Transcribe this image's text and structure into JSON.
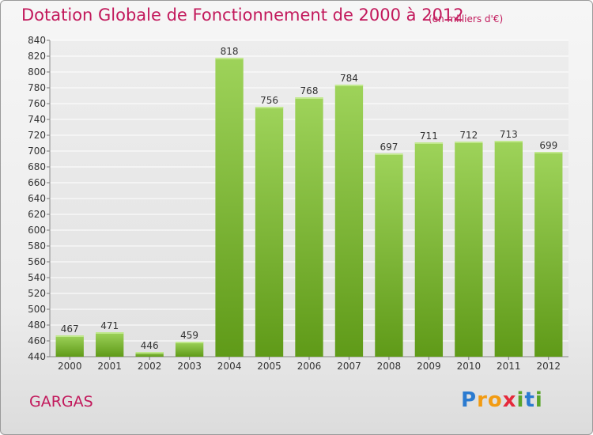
{
  "title": "Dotation Globale de Fonctionnement de 2000 à 2012",
  "subtitle": "(en milliers d'€)",
  "commune": "GARGAS",
  "brand": "Proxiti",
  "colors": {
    "title": "#c2185b",
    "bar_top": "#9ed35a",
    "bar_bottom": "#5f9a18",
    "grid": "#ffffff",
    "text": "#333333"
  },
  "chart_data": {
    "type": "bar",
    "title": "Dotation Globale de Fonctionnement de 2000 à 2012",
    "subtitle": "(en milliers d'€)",
    "categories": [
      "2000",
      "2001",
      "2002",
      "2003",
      "2004",
      "2005",
      "2006",
      "2007",
      "2008",
      "2009",
      "2010",
      "2011",
      "2012"
    ],
    "values": [
      467,
      471,
      446,
      459,
      818,
      756,
      768,
      784,
      697,
      711,
      712,
      713,
      699
    ],
    "ylim": [
      440,
      840
    ],
    "ytick_step": 20,
    "grid": true,
    "xlabel": "",
    "ylabel": ""
  }
}
